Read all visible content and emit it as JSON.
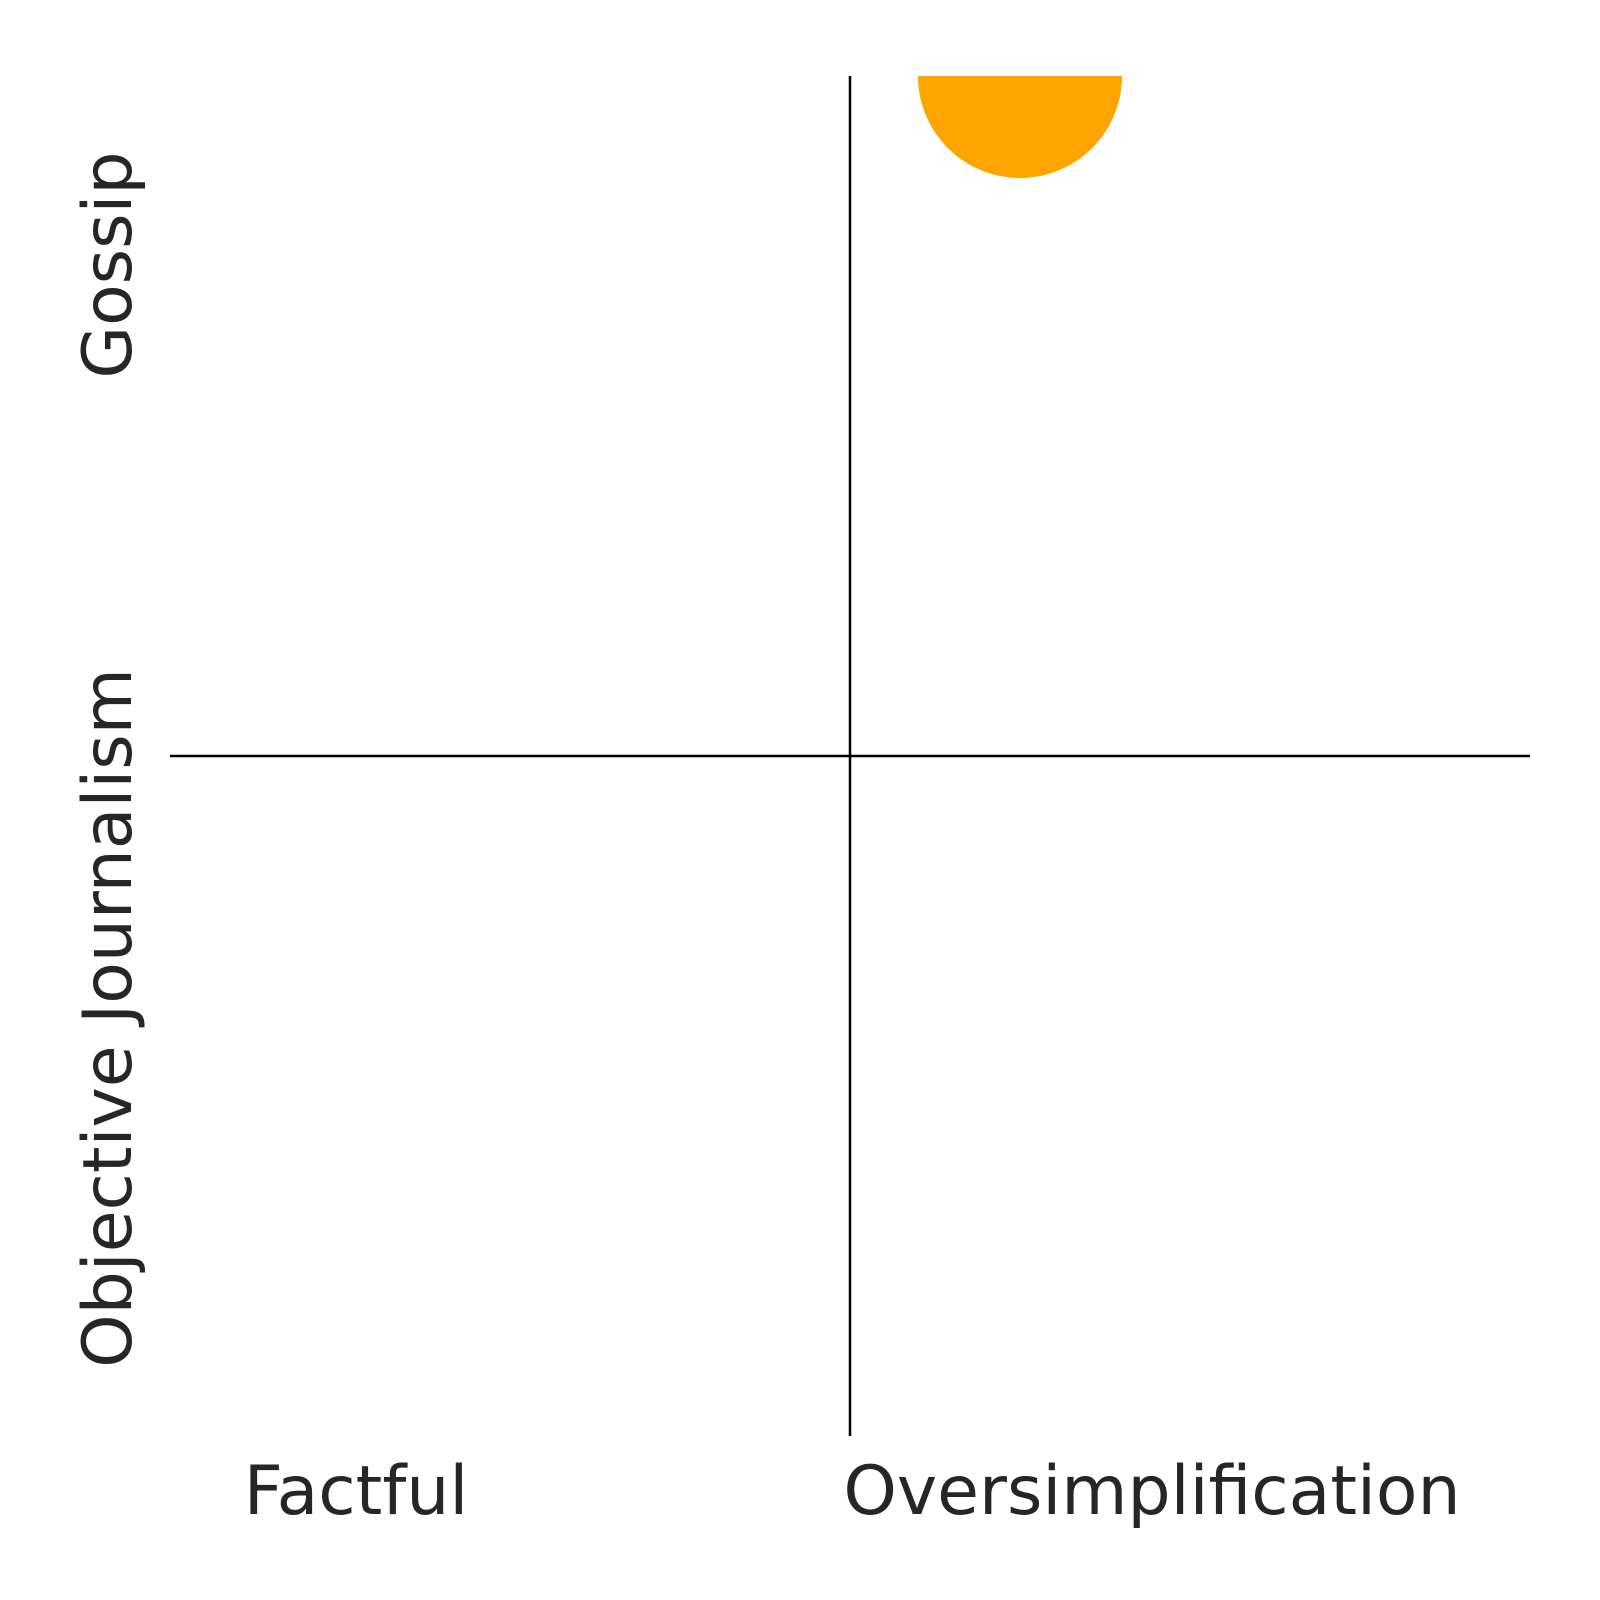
{
  "chart_data": {
    "type": "scatter",
    "title": "",
    "xlim": [
      0,
      2
    ],
    "ylim": [
      0,
      2
    ],
    "x_tick_labels": [
      "Factful",
      "Oversimplification"
    ],
    "y_tick_labels": [
      "Objective Journalism",
      "Gossip"
    ],
    "quadrant_divider": {
      "x": 1,
      "y": 1
    },
    "points": [
      {
        "x": 1.25,
        "y": 2
      }
    ],
    "grid": false,
    "legend": "none"
  },
  "colors": {
    "point": "#FFA500",
    "divider": "#000000",
    "text": "#262626",
    "background": "#FFFFFF"
  }
}
